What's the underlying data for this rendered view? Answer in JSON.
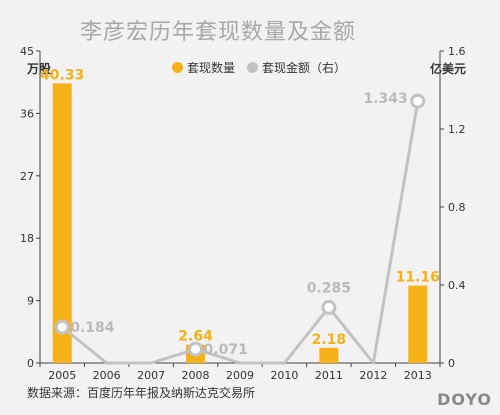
{
  "title": "李彦宏历年套现数量及金额",
  "left_unit": "万股",
  "right_unit": "亿美元",
  "source": "数据来源：百度历年年报及纳斯达克交易所",
  "brand": "DOYO",
  "colors": {
    "bar": "#f5b117",
    "line": "#c2c2c2",
    "axis": "#444444",
    "label_gray": "#bbbbbb"
  },
  "chart_data": {
    "type": "bar",
    "title": "李彦宏历年套现数量及金额",
    "categories": [
      "2005",
      "2006",
      "2007",
      "2008",
      "2009",
      "2010",
      "2011",
      "2012",
      "2013"
    ],
    "left_ticks": [
      "0",
      "9",
      "18",
      "27",
      "36",
      "45"
    ],
    "right_ticks": [
      "0",
      "0.4",
      "0.8",
      "1.2",
      "1.6"
    ],
    "ylim_left": [
      0,
      45
    ],
    "ylim_right": [
      0,
      1.6
    ],
    "series": [
      {
        "name": "套现数量",
        "type": "bar",
        "axis": "left",
        "values": [
          40.33,
          0,
          0,
          2.64,
          0,
          0,
          2.18,
          0,
          11.16
        ],
        "labels": [
          "40.33",
          "",
          "",
          "2.64",
          "",
          "",
          "2.18",
          "",
          "11.16"
        ]
      },
      {
        "name": "套现金额（右）",
        "type": "line",
        "axis": "right",
        "values": [
          0.184,
          0,
          0,
          0.071,
          0,
          0,
          0.285,
          0,
          1.343
        ],
        "labels": [
          "0.184",
          "",
          "",
          "0.071",
          "",
          "",
          "0.285",
          "",
          "1.343"
        ]
      }
    ]
  }
}
